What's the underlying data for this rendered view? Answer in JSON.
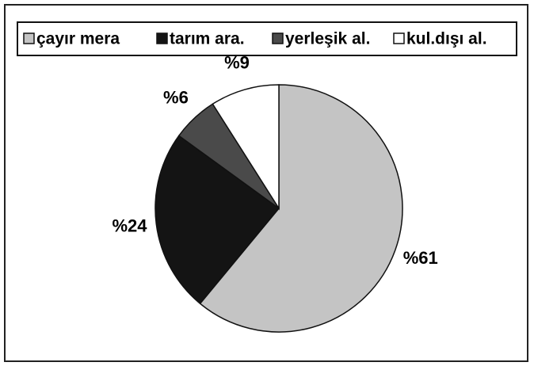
{
  "chart_data": {
    "type": "pie",
    "categories": [
      "çayır mera",
      "tarım ara.",
      "yerleşik al.",
      "kul.dışı al."
    ],
    "values": [
      61,
      24,
      6,
      9
    ],
    "value_labels": [
      "%61",
      "%24",
      "%6",
      "%9"
    ],
    "colors": [
      "#c4c4c4",
      "#141414",
      "#4a4a4a",
      "#ffffff"
    ],
    "legend": "top"
  }
}
